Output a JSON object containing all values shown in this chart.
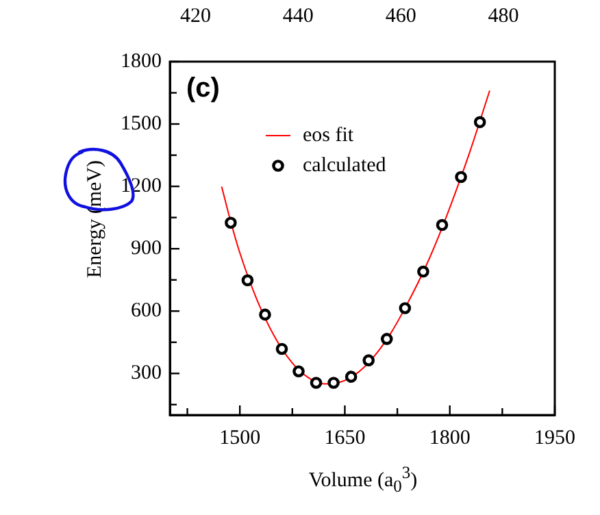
{
  "chart_data": {
    "type": "scatter",
    "title": "(c)",
    "xlabel": "Volume (a$_{0}$$^{3}$)",
    "ylabel": "Energy (meV)",
    "xlim": [
      1400,
      1950
    ],
    "xticks": [
      {
        "value": 1425,
        "label": null
      },
      1500,
      {
        "value": 1575,
        "label": null
      },
      1650,
      {
        "value": 1725,
        "label": null
      },
      1800,
      {
        "value": 1875,
        "label": null
      },
      1950
    ],
    "ylim": [
      100,
      1800
    ],
    "yticks": [
      {
        "value": 150,
        "label": null
      },
      300,
      {
        "value": 450,
        "label": null
      },
      600,
      {
        "value": 750,
        "label": null
      },
      900,
      {
        "value": 1050,
        "label": null
      },
      1200,
      {
        "value": 1350,
        "label": null
      },
      1500,
      {
        "value": 1650,
        "label": null
      },
      1800
    ],
    "x2lim": [
      415,
      490
    ],
    "x2ticks": [
      420,
      440,
      460,
      480
    ],
    "legend": "top",
    "grid": false,
    "series": [
      {
        "name": "eos fit",
        "type": "line",
        "color": "#ff0000",
        "marker": "none",
        "line_style": "solid",
        "x": [
          1474,
          1487,
          1500,
          1525,
          1550,
          1575,
          1600,
          1620,
          1640,
          1665,
          1690,
          1715,
          1740,
          1765,
          1790,
          1828,
          1857
        ],
        "values": [
          1199,
          1030,
          880,
          650,
          475,
          350,
          275,
          250,
          255,
          295,
          375,
          490,
          640,
          810,
          1010,
          1360,
          1661
        ]
      },
      {
        "name": "calculated",
        "color": "#000000",
        "marker": "circle",
        "x": [
          1487,
          1511,
          1536,
          1560,
          1584,
          1609,
          1634,
          1659,
          1684,
          1710,
          1736,
          1762,
          1789,
          1816,
          1843
        ],
        "values": [
          1025,
          748,
          583,
          418,
          310,
          255,
          255,
          284,
          363,
          466,
          614,
          790,
          1014,
          1245,
          1509
        ]
      }
    ]
  }
}
